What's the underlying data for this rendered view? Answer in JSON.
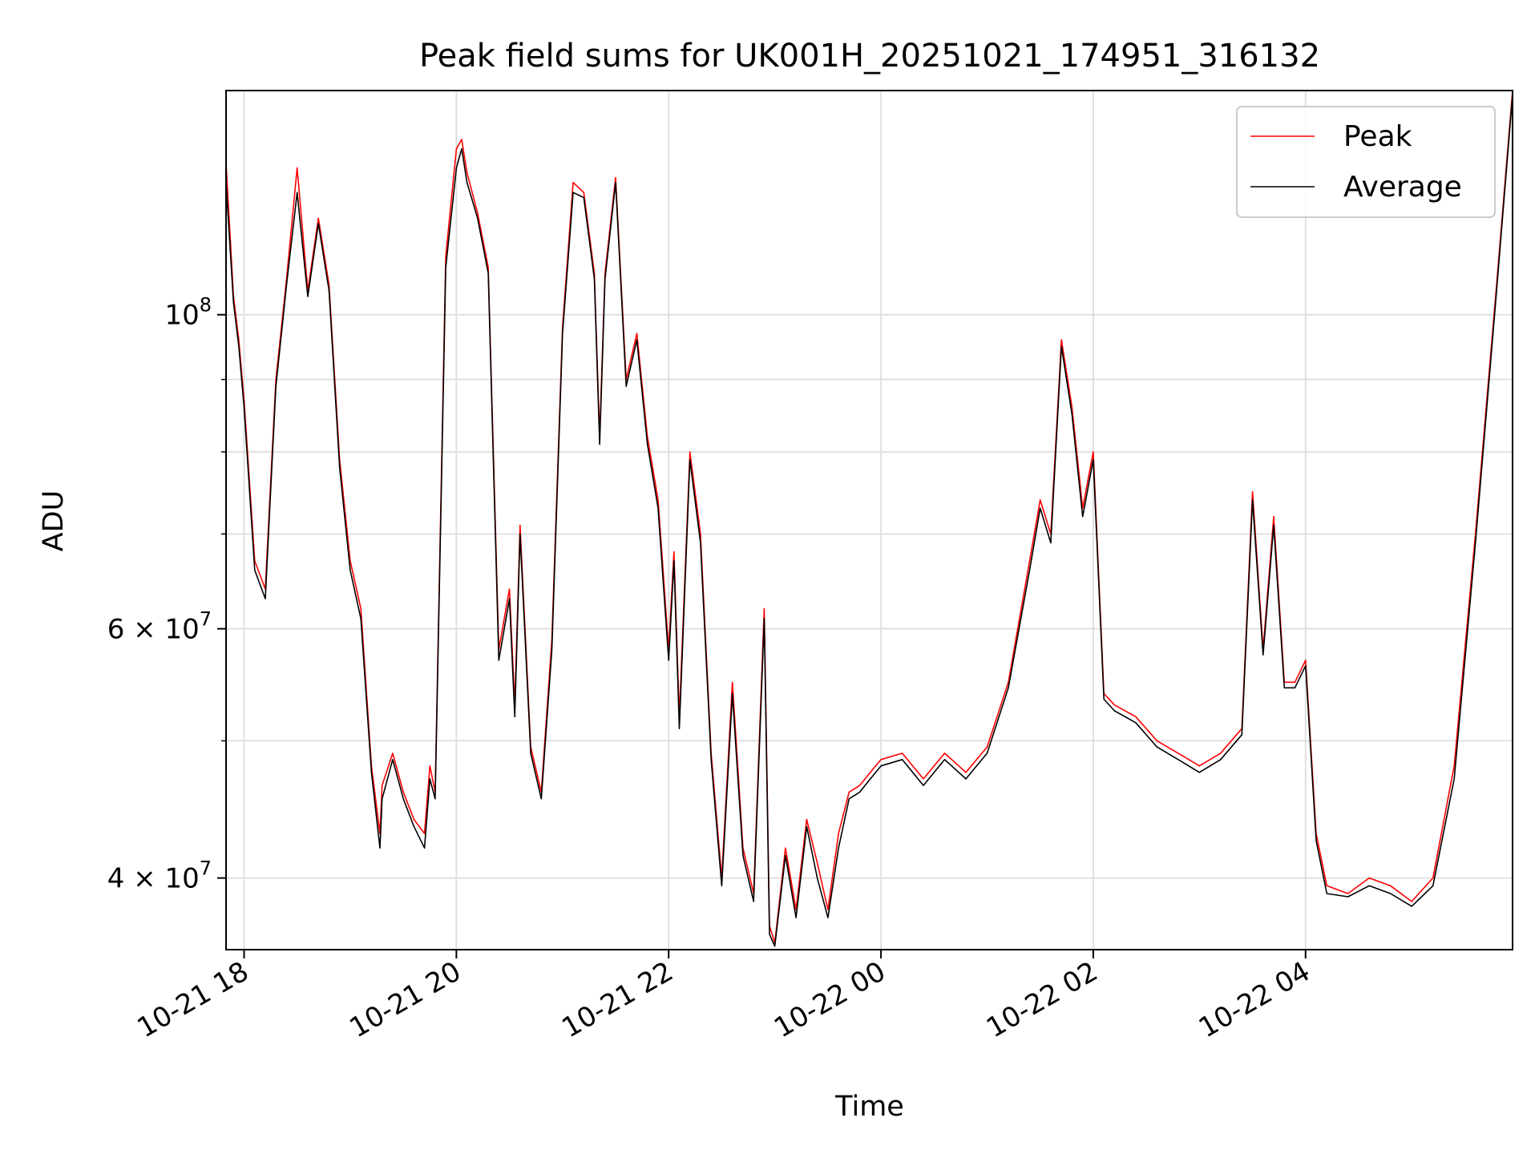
{
  "chart_data": {
    "type": "line",
    "title": "Peak field sums for UK001H_20251021_174951_316132",
    "xlabel": "Time",
    "ylabel": "ADU",
    "x_ticks": [
      "10-21 18",
      "10-21 20",
      "10-21 22",
      "10-22 00",
      "10-22 02",
      "10-22 04"
    ],
    "x_tick_hours": [
      0,
      2,
      4,
      6,
      8,
      10
    ],
    "xlim_hours": [
      -0.17,
      11.95
    ],
    "yscale": "log",
    "ylim": [
      35600000,
      144000000
    ],
    "y_major_ticks": [
      {
        "value": 40000000,
        "mantissa": "4",
        "exp": "7"
      },
      {
        "value": 60000000,
        "mantissa": "6",
        "exp": "7"
      },
      {
        "value": 100000000,
        "mantissa": "",
        "exp": "8"
      }
    ],
    "y_minor_ticks": [
      50000000,
      70000000,
      80000000,
      90000000
    ],
    "grid": true,
    "legend_position": "upper right",
    "series": [
      {
        "name": "Peak",
        "color": "#ff0000",
        "x": [
          -0.17,
          -0.1,
          -0.05,
          0.0,
          0.1,
          0.2,
          0.25,
          0.3,
          0.4,
          0.5,
          0.6,
          0.7,
          0.8,
          0.9,
          1.0,
          1.1,
          1.2,
          1.28,
          1.3,
          1.4,
          1.5,
          1.6,
          1.7,
          1.75,
          1.8,
          1.9,
          2.0,
          2.05,
          2.1,
          2.2,
          2.3,
          2.4,
          2.5,
          2.55,
          2.6,
          2.7,
          2.8,
          2.9,
          3.0,
          3.1,
          3.2,
          3.3,
          3.35,
          3.4,
          3.5,
          3.6,
          3.7,
          3.8,
          3.9,
          4.0,
          4.05,
          4.1,
          4.2,
          4.3,
          4.4,
          4.5,
          4.6,
          4.7,
          4.8,
          4.9,
          4.95,
          5.0,
          5.1,
          5.2,
          5.3,
          5.4,
          5.5,
          5.6,
          5.7,
          5.8,
          5.9,
          6.0,
          6.2,
          6.4,
          6.6,
          6.8,
          7.0,
          7.2,
          7.4,
          7.5,
          7.6,
          7.7,
          7.8,
          7.9,
          8.0,
          8.1,
          8.2,
          8.4,
          8.6,
          8.8,
          9.0,
          9.2,
          9.4,
          9.5,
          9.6,
          9.7,
          9.8,
          9.9,
          10.0,
          10.1,
          10.2,
          10.4,
          10.6,
          10.8,
          11.0,
          11.2,
          11.4,
          11.6,
          11.8,
          11.95
        ],
        "values": [
          128000000,
          103000000,
          96000000,
          87000000,
          67000000,
          64000000,
          76000000,
          90000000,
          106000000,
          127000000,
          104000000,
          117000000,
          105000000,
          79000000,
          67000000,
          62000000,
          48000000,
          43000000,
          46500000,
          49000000,
          46000000,
          44000000,
          43000000,
          48000000,
          46000000,
          110000000,
          131000000,
          133000000,
          126000000,
          118000000,
          108000000,
          58000000,
          64000000,
          53000000,
          71000000,
          49500000,
          46000000,
          59000000,
          98000000,
          124000000,
          122000000,
          107000000,
          82000000,
          107000000,
          125000000,
          90000000,
          97000000,
          82000000,
          74000000,
          58000000,
          68000000,
          52000000,
          80000000,
          70000000,
          49000000,
          40000000,
          55000000,
          42000000,
          39000000,
          62000000,
          37000000,
          36000000,
          42000000,
          38000000,
          44000000,
          41000000,
          38000000,
          43000000,
          46000000,
          46500000,
          47500000,
          48500000,
          49000000,
          47000000,
          49000000,
          47500000,
          49500000,
          55000000,
          67000000,
          74000000,
          70000000,
          96000000,
          86000000,
          73000000,
          80000000,
          54000000,
          53000000,
          52000000,
          50000000,
          49000000,
          48000000,
          49000000,
          51000000,
          75000000,
          58000000,
          72000000,
          55000000,
          55000000,
          57000000,
          43000000,
          39500000,
          39000000,
          40000000,
          39500000,
          38500000,
          40000000,
          48000000,
          70000000,
          105000000,
          144000000
        ]
      },
      {
        "name": "Average",
        "color": "#000000",
        "x": [
          -0.17,
          -0.1,
          -0.05,
          0.0,
          0.1,
          0.2,
          0.25,
          0.3,
          0.4,
          0.5,
          0.6,
          0.7,
          0.8,
          0.9,
          1.0,
          1.1,
          1.2,
          1.28,
          1.3,
          1.4,
          1.5,
          1.6,
          1.7,
          1.75,
          1.8,
          1.9,
          2.0,
          2.05,
          2.1,
          2.2,
          2.3,
          2.4,
          2.5,
          2.55,
          2.6,
          2.7,
          2.8,
          2.9,
          3.0,
          3.1,
          3.2,
          3.3,
          3.35,
          3.4,
          3.5,
          3.6,
          3.7,
          3.8,
          3.9,
          4.0,
          4.05,
          4.1,
          4.2,
          4.3,
          4.4,
          4.5,
          4.6,
          4.7,
          4.8,
          4.9,
          4.95,
          5.0,
          5.1,
          5.2,
          5.3,
          5.4,
          5.5,
          5.6,
          5.7,
          5.8,
          5.9,
          6.0,
          6.2,
          6.4,
          6.6,
          6.8,
          7.0,
          7.2,
          7.4,
          7.5,
          7.6,
          7.7,
          7.8,
          7.9,
          8.0,
          8.1,
          8.2,
          8.4,
          8.6,
          8.8,
          9.0,
          9.2,
          9.4,
          9.5,
          9.6,
          9.7,
          9.8,
          9.9,
          10.0,
          10.1,
          10.2,
          10.4,
          10.6,
          10.8,
          11.0,
          11.2,
          11.4,
          11.6,
          11.8,
          11.95
        ],
        "values": [
          124000000,
          102000000,
          95000000,
          86000000,
          66000000,
          63000000,
          75000000,
          89000000,
          105000000,
          122000000,
          103000000,
          116000000,
          104000000,
          78000000,
          66000000,
          61000000,
          47500000,
          42000000,
          45500000,
          48500000,
          45500000,
          43500000,
          42000000,
          47000000,
          45500000,
          108000000,
          127000000,
          131000000,
          124000000,
          117000000,
          107000000,
          57000000,
          63000000,
          52000000,
          70000000,
          49000000,
          45500000,
          58000000,
          97000000,
          122000000,
          121000000,
          106000000,
          81000000,
          106000000,
          124000000,
          89000000,
          96000000,
          81000000,
          73000000,
          57000000,
          67000000,
          51000000,
          79000000,
          69000000,
          48500000,
          39500000,
          54000000,
          41500000,
          38500000,
          61000000,
          36500000,
          35800000,
          41500000,
          37500000,
          43500000,
          40000000,
          37500000,
          42000000,
          45500000,
          46000000,
          47000000,
          48000000,
          48500000,
          46500000,
          48500000,
          47000000,
          49000000,
          54500000,
          66000000,
          73000000,
          69000000,
          95000000,
          85000000,
          72000000,
          79000000,
          53500000,
          52500000,
          51500000,
          49500000,
          48500000,
          47500000,
          48500000,
          50500000,
          74000000,
          57500000,
          71000000,
          54500000,
          54500000,
          56500000,
          42500000,
          39000000,
          38800000,
          39500000,
          39000000,
          38200000,
          39500000,
          47000000,
          69000000,
          104000000,
          143000000
        ]
      }
    ]
  }
}
